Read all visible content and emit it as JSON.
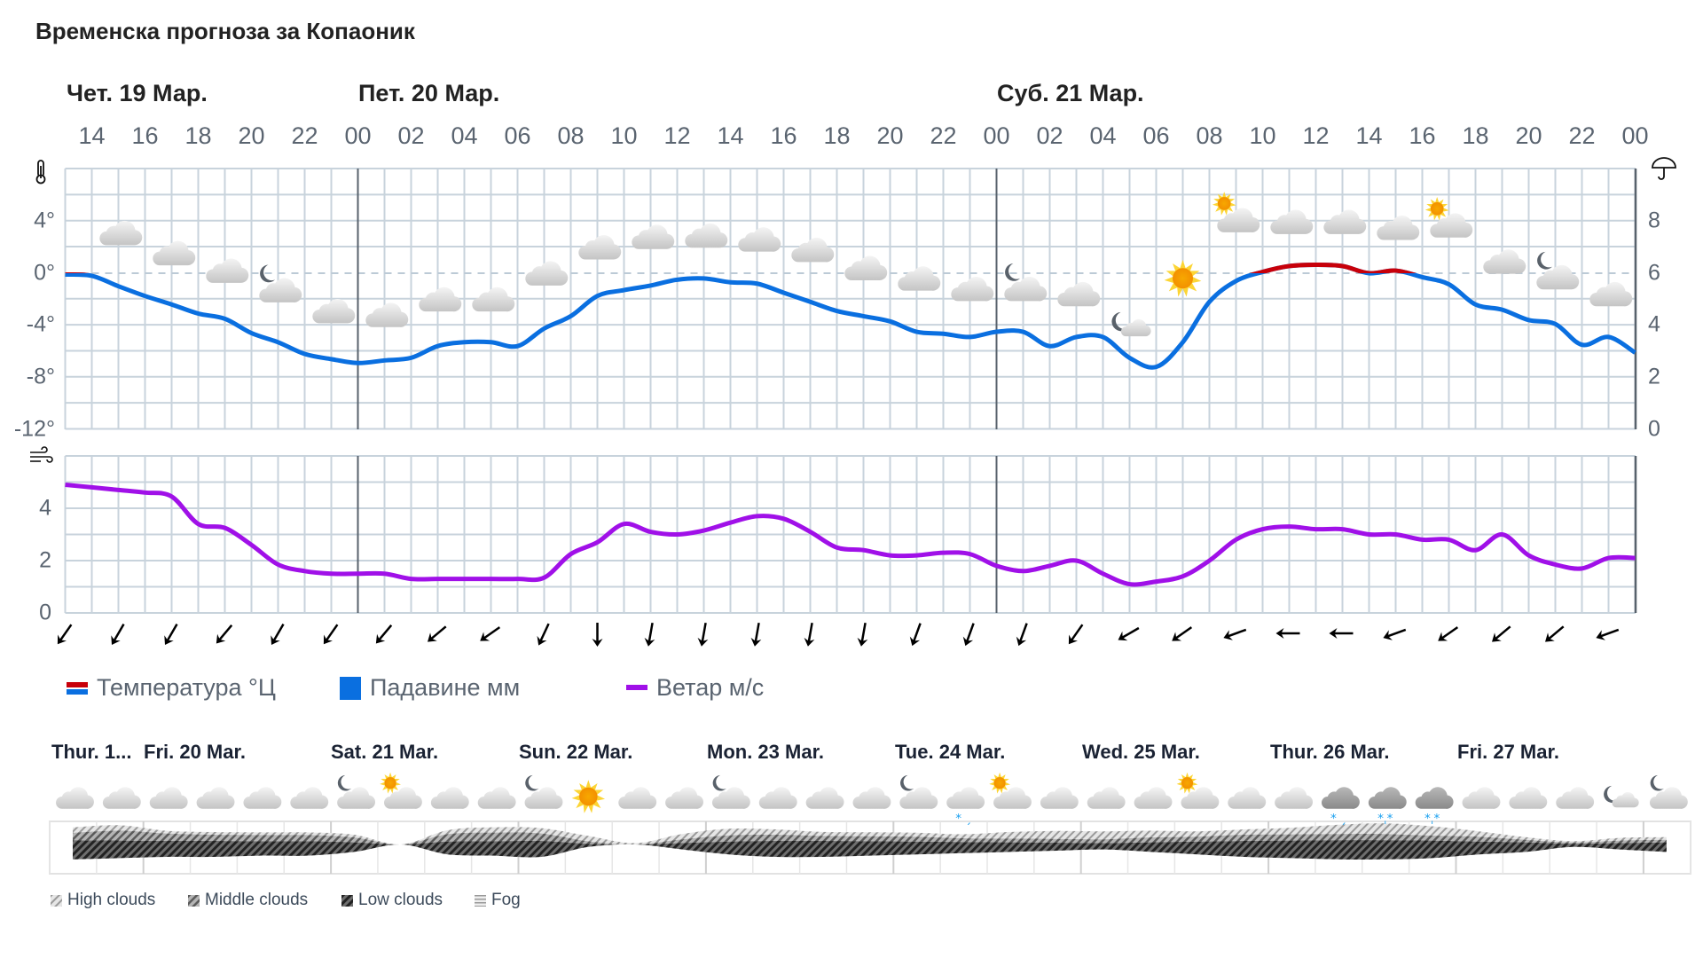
{
  "title": "Временска прогноза за Копаоник",
  "colors": {
    "temp_above_zero": "#c8000a",
    "temp_below_zero": "#0a6fe0",
    "precipitation": "#0a6fe0",
    "wind": "#a010e8",
    "grid": "#c8d3dc",
    "day_separator": "#58626c"
  },
  "days": [
    "Чет. 19 Мар.",
    "Пет. 20 Мар.",
    "Суб. 21 Мар."
  ],
  "legend": {
    "temperature": "Температура °Ц",
    "precipitation": "Падавине мм",
    "wind": "Ветар м/с"
  },
  "icons": {
    "temperature_axis": "thermometer-icon",
    "precipitation_axis": "umbrella-icon",
    "wind_axis": "wind-icon"
  },
  "chart_data": [
    {
      "type": "line",
      "x_start": "Чет. 19 Мар. 13:00",
      "x_step_hours": 1,
      "x_tick_labels": [
        "14",
        "16",
        "18",
        "20",
        "22",
        "00",
        "02",
        "04",
        "06",
        "08",
        "10",
        "12",
        "14",
        "16",
        "18",
        "20",
        "22",
        "00",
        "02",
        "04",
        "06",
        "08",
        "10",
        "12",
        "14",
        "16",
        "18",
        "20",
        "22",
        "00"
      ],
      "y_tick_labels": [
        "4°",
        "0°",
        "-4°",
        "-8°",
        "-12°"
      ],
      "ylim": [
        -12,
        8
      ],
      "y2_tick_labels": [
        "8",
        "6",
        "4",
        "2",
        "0"
      ],
      "y2lim": [
        0,
        10
      ],
      "grid": true,
      "series": [
        {
          "name": "Температура °Ц",
          "values": [
            -0.1,
            -0.2,
            -1.0,
            -1.75,
            -2.4,
            -3.1,
            -3.5,
            -4.6,
            -5.3,
            -6.2,
            -6.6,
            -6.9,
            -6.7,
            -6.5,
            -5.6,
            -5.3,
            -5.3,
            -5.6,
            -4.25,
            -3.3,
            -1.75,
            -1.3,
            -0.95,
            -0.5,
            -0.4,
            -0.7,
            -0.8,
            -1.5,
            -2.2,
            -2.9,
            -3.3,
            -3.7,
            -4.5,
            -4.65,
            -4.9,
            -4.5,
            -4.5,
            -5.6,
            -4.9,
            -4.9,
            -6.5,
            -7.2,
            -5.3,
            -2.2,
            -0.6,
            0.1,
            0.55,
            0.65,
            0.55,
            0.0,
            0.2,
            -0.3,
            -0.85,
            -2.4,
            -2.8,
            -3.6,
            -3.9,
            -5.5,
            -4.9,
            -6.1
          ]
        },
        {
          "name": "Падавине мм",
          "values": []
        }
      ],
      "weather_icons_every_2h_from_15": [
        "cloud",
        "cloud",
        "cloud",
        "moon-cloud",
        "cloud",
        "cloud",
        "cloud",
        "cloud",
        "cloud",
        "cloud",
        "cloud",
        "cloud",
        "cloud",
        "cloud",
        "cloud",
        "cloud",
        "cloud",
        "moon-cloud",
        "cloud",
        "moon-cloud-small",
        "sun",
        "sun-cloud",
        "cloud",
        "cloud",
        "cloud",
        "sun-cloud",
        "cloud",
        "moon-cloud",
        "cloud"
      ]
    },
    {
      "type": "line",
      "x_start": "Чет. 19 Мар. 13:00",
      "x_step_hours": 1,
      "y_tick_labels": [
        "4",
        "2",
        "0"
      ],
      "ylim": [
        0,
        6
      ],
      "grid": true,
      "series": [
        {
          "name": "Ветар м/с",
          "values": [
            4.9,
            4.8,
            4.7,
            4.6,
            4.45,
            3.4,
            3.25,
            2.6,
            1.85,
            1.6,
            1.5,
            1.5,
            1.5,
            1.3,
            1.3,
            1.3,
            1.3,
            1.3,
            1.35,
            2.25,
            2.7,
            3.4,
            3.1,
            3.0,
            3.15,
            3.45,
            3.7,
            3.6,
            3.1,
            2.5,
            2.4,
            2.2,
            2.2,
            2.3,
            2.25,
            1.8,
            1.6,
            1.8,
            2.0,
            1.5,
            1.1,
            1.2,
            1.4,
            2.0,
            2.8,
            3.2,
            3.3,
            3.2,
            3.2,
            3.0,
            3.0,
            2.8,
            2.8,
            2.4,
            3.0,
            2.2,
            1.85,
            1.7,
            2.1,
            2.1
          ]
        }
      ],
      "wind_arrow_direction_deg_every_2h_from_13": [
        215,
        210,
        210,
        220,
        210,
        215,
        220,
        230,
        235,
        205,
        180,
        190,
        190,
        190,
        190,
        190,
        200,
        200,
        200,
        215,
        240,
        235,
        250,
        270,
        270,
        250,
        235,
        230,
        230,
        250
      ]
    },
    {
      "type": "area",
      "days": [
        "Thur. 1...",
        "Fri. 20 Mar.",
        "Sat. 21 Mar.",
        "Sun. 22 Mar.",
        "Mon. 23 Mar.",
        "Tue. 24 Mar.",
        "Wed. 25 Mar.",
        "Thur. 26 Mar.",
        "Fri. 27 Mar."
      ],
      "x_step_hours": 6,
      "weather_icons": [
        "cloud",
        "cloud",
        "cloud",
        "cloud",
        "cloud",
        "cloud",
        "moon-cloud",
        "sun-cloud",
        "cloud",
        "cloud",
        "moon-cloud",
        "sun",
        "cloud",
        "cloud",
        "moon-cloud",
        "cloud",
        "cloud",
        "cloud",
        "moon-cloud",
        "cloud-rain-snow",
        "sun-cloud",
        "cloud",
        "cloud",
        "cloud",
        "sun-cloud",
        "cloud",
        "cloud",
        "cloud-dark-rain-snow",
        "cloud-dark-snow",
        "cloud-dark-snow",
        "cloud",
        "cloud",
        "cloud",
        "moon-cloud-small",
        "moon-cloud"
      ],
      "series": [
        {
          "name": "Low clouds",
          "values": [
            60,
            55,
            50,
            50,
            45,
            45,
            30,
            0,
            40,
            45,
            50,
            10,
            0,
            20,
            40,
            50,
            50,
            45,
            40,
            35,
            30,
            25,
            20,
            30,
            40,
            50,
            55,
            60,
            60,
            55,
            40,
            30,
            10,
            20,
            30
          ]
        },
        {
          "name": "Middle clouds",
          "values": [
            30,
            40,
            30,
            25,
            25,
            25,
            20,
            0,
            30,
            35,
            30,
            10,
            0,
            15,
            25,
            25,
            20,
            20,
            20,
            15,
            15,
            15,
            15,
            20,
            20,
            25,
            25,
            25,
            25,
            20,
            20,
            10,
            5,
            10,
            10
          ]
        },
        {
          "name": "High clouds",
          "values": [
            20,
            20,
            10,
            10,
            10,
            10,
            10,
            0,
            15,
            20,
            20,
            20,
            5,
            20,
            25,
            20,
            15,
            15,
            15,
            15,
            25,
            30,
            30,
            25,
            20,
            20,
            25,
            35,
            40,
            35,
            20,
            10,
            5,
            10,
            10
          ]
        }
      ],
      "legend": [
        "High clouds",
        "Middle clouds",
        "Low clouds",
        "Fog"
      ]
    }
  ]
}
